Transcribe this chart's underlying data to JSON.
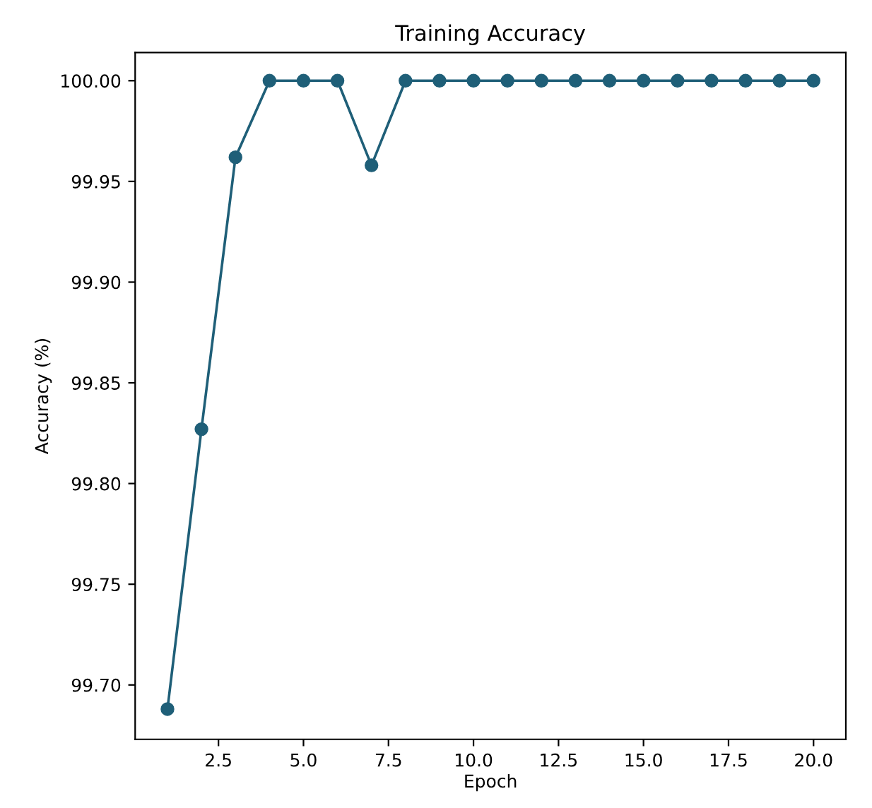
{
  "chart_data": {
    "type": "line",
    "title": "Training Accuracy",
    "xlabel": "Epoch",
    "ylabel": "Accuracy (%)",
    "x": [
      1,
      2,
      3,
      4,
      5,
      6,
      7,
      8,
      9,
      10,
      11,
      12,
      13,
      14,
      15,
      16,
      17,
      18,
      19,
      20
    ],
    "series": [
      {
        "color": "#1f5f78",
        "values": [
          99.688,
          99.827,
          99.962,
          100.0,
          100.0,
          100.0,
          99.958,
          100.0,
          100.0,
          100.0,
          100.0,
          100.0,
          100.0,
          100.0,
          100.0,
          100.0,
          100.0,
          100.0,
          100.0,
          100.0
        ]
      }
    ],
    "xlim": [
      0.05,
      20.95
    ],
    "xticks": [
      2.5,
      {
        "value": 5,
        "label": "5.0"
      },
      7.5,
      {
        "value": 10,
        "label": "10.0"
      },
      12.5,
      {
        "value": 15,
        "label": "15.0"
      },
      17.5,
      {
        "value": 20,
        "label": "20.0"
      }
    ],
    "ylim": [
      99.673,
      100.014
    ],
    "yticks": [
      {
        "value": 99.7,
        "label": "99.70"
      },
      {
        "value": 99.75,
        "label": "99.75"
      },
      {
        "value": 99.8,
        "label": "99.80"
      },
      {
        "value": 99.85,
        "label": "99.85"
      },
      {
        "value": 99.9,
        "label": "99.90"
      },
      {
        "value": 99.95,
        "label": "99.95"
      },
      {
        "value": 100.0,
        "label": "100.00"
      }
    ],
    "marker": "circle",
    "line_style": "solid",
    "grid": false,
    "legend": false
  }
}
